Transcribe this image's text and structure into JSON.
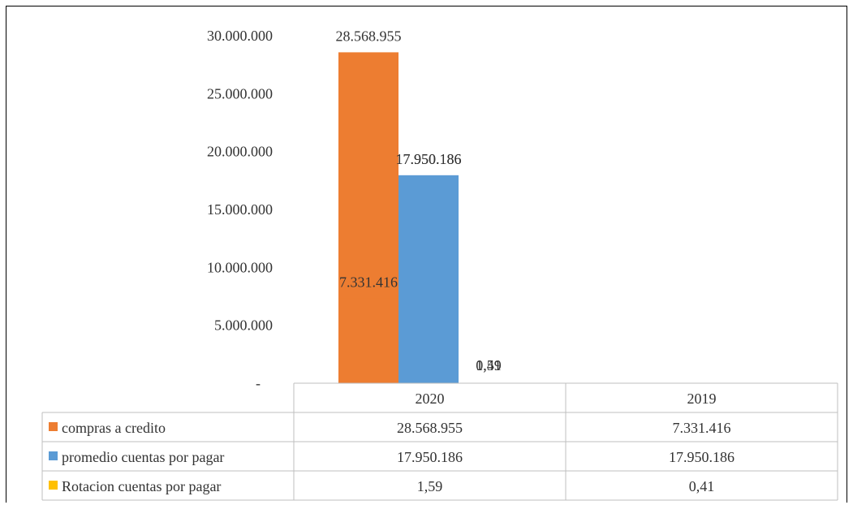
{
  "chart_data": {
    "type": "bar",
    "categories": [
      "2020",
      "2019"
    ],
    "series": [
      {
        "name": "compras a credito",
        "color": "#ED7D31",
        "values": [
          28568955,
          7331416
        ],
        "labels": [
          "28.568.955",
          "7.331.416"
        ]
      },
      {
        "name": "promedio cuentas por pagar",
        "color": "#5B9BD5",
        "values": [
          17950186,
          17950186
        ],
        "labels": [
          "17.950.186",
          "17.950.186"
        ]
      },
      {
        "name": "Rotacion cuentas por pagar",
        "color": "#FFC000",
        "values": [
          1.59,
          0.41
        ],
        "labels": [
          "1,59",
          "0,41"
        ]
      }
    ],
    "y_ticks": [
      {
        "value": 0,
        "label": "-"
      },
      {
        "value": 5000000,
        "label": "5.000.000"
      },
      {
        "value": 10000000,
        "label": "10.000.000"
      },
      {
        "value": 15000000,
        "label": "15.000.000"
      },
      {
        "value": 20000000,
        "label": "20.000.000"
      },
      {
        "value": 25000000,
        "label": "25.000.000"
      },
      {
        "value": 30000000,
        "label": "30.000.000"
      }
    ],
    "ylim": [
      0,
      30000000
    ],
    "grid": false,
    "legend": "data-table-below",
    "title": "",
    "xlabel": "",
    "ylabel": ""
  }
}
